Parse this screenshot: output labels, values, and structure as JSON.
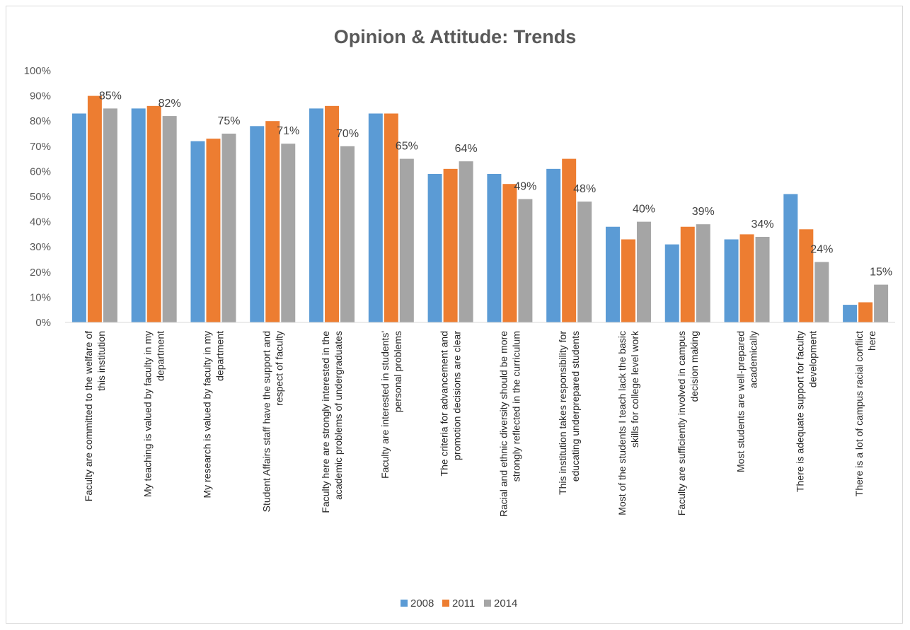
{
  "chart_data": {
    "type": "bar",
    "title": "Opinion & Attitude: Trends",
    "xlabel": "",
    "ylabel": "",
    "ylim": [
      0,
      100
    ],
    "yticks": [
      "0%",
      "10%",
      "20%",
      "30%",
      "40%",
      "50%",
      "60%",
      "70%",
      "80%",
      "90%",
      "100%"
    ],
    "grid": false,
    "legend_position": "bottom",
    "categories": [
      [
        "Faculty are committed to the welfare of",
        "this institution"
      ],
      [
        "My teaching is valued by faculty in my",
        "department"
      ],
      [
        "My research is valued by faculty in my",
        "department"
      ],
      [
        "Student Affairs staff have the support and",
        "respect of faculty"
      ],
      [
        "Faculty here are strongly interested in the",
        "academic problems of undergraduates"
      ],
      [
        "Faculty are interested in students'",
        "personal problems"
      ],
      [
        "The criteria for advancement and",
        "promotion decisions are clear"
      ],
      [
        "Racial and ethnic diversity should be more",
        "strongly reflected in the curriculum"
      ],
      [
        "This institution takes responsibility for",
        "educating underprepared students"
      ],
      [
        "Most of the students I teach lack the basic",
        "skills for college level work"
      ],
      [
        "Faculty are sufficiently involved in campus",
        "decision making"
      ],
      [
        "Most students are well-prepared",
        "academically"
      ],
      [
        "There is adequate support for faculty",
        "development"
      ],
      [
        "There is a lot of campus racial conflict",
        "here"
      ]
    ],
    "series": [
      {
        "name": "2008",
        "color": "#5b9bd5",
        "values": [
          83,
          85,
          72,
          78,
          85,
          83,
          59,
          59,
          61,
          38,
          31,
          33,
          51,
          7
        ]
      },
      {
        "name": "2011",
        "color": "#ed7d31",
        "values": [
          90,
          86,
          73,
          80,
          86,
          83,
          61,
          55,
          65,
          33,
          38,
          35,
          37,
          8
        ]
      },
      {
        "name": "2014",
        "color": "#a5a5a5",
        "values": [
          85,
          82,
          75,
          71,
          70,
          65,
          64,
          49,
          48,
          40,
          39,
          34,
          24,
          15
        ]
      }
    ],
    "data_labels": {
      "series": "2014",
      "text": [
        "85%",
        "82%",
        "75%",
        "71%",
        "70%",
        "65%",
        "64%",
        "49%",
        "48%",
        "40%",
        "39%",
        "34%",
        "24%",
        "15%"
      ]
    }
  }
}
